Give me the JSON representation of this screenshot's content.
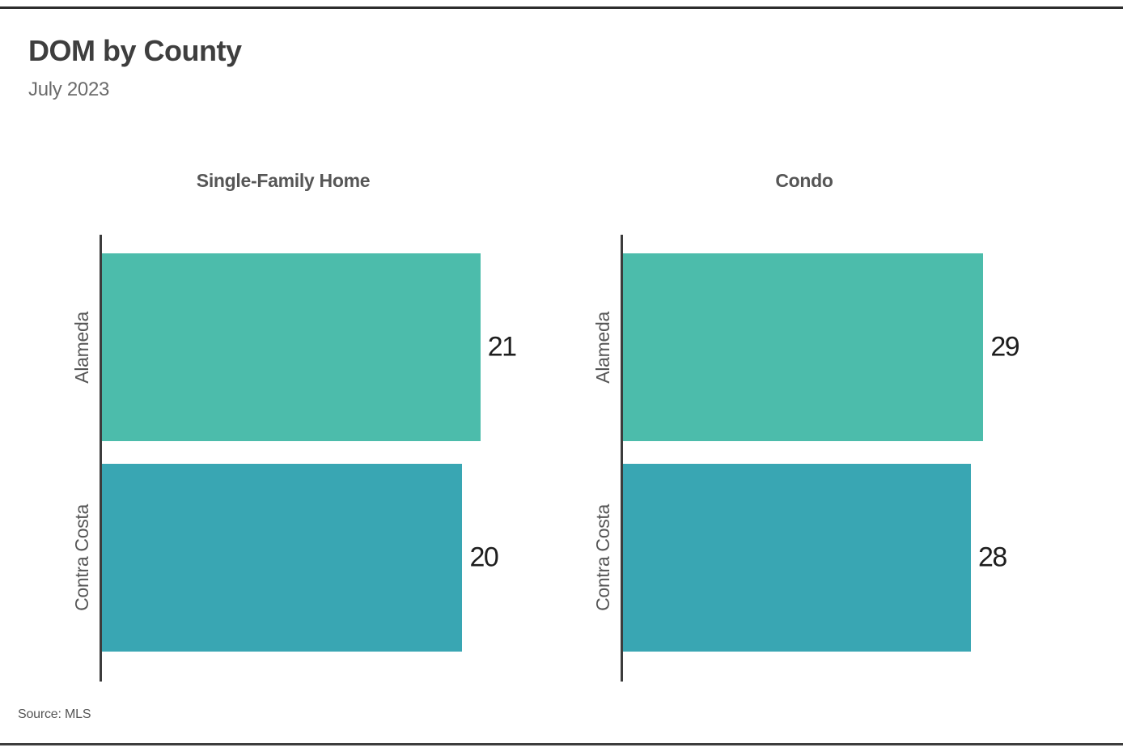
{
  "header": {
    "title": "DOM by County",
    "subtitle": "July 2023"
  },
  "footer": {
    "source_note": "Source: MLS"
  },
  "chart_data": [
    {
      "type": "bar",
      "orientation": "horizontal",
      "title": "Single-Family Home",
      "categories": [
        "Alameda",
        "Contra Costa"
      ],
      "values": [
        21,
        20
      ],
      "value_labels": [
        "21",
        "20"
      ],
      "xlim": [
        0,
        24.2
      ],
      "bar_colors": [
        "#4cbcab",
        "#39a6b3"
      ],
      "axis_color": "#3c3c3c",
      "grid": false,
      "legend": false
    },
    {
      "type": "bar",
      "orientation": "horizontal",
      "title": "Condo",
      "categories": [
        "Alameda",
        "Contra Costa"
      ],
      "values": [
        29,
        28
      ],
      "value_labels": [
        "29",
        "28"
      ],
      "xlim": [
        0,
        35.1
      ],
      "bar_colors": [
        "#4cbcab",
        "#39a6b3"
      ],
      "axis_color": "#3c3c3c",
      "grid": false,
      "legend": false
    }
  ],
  "colors": {
    "background": "#ffffff",
    "rule_top": "#2d2d2d",
    "rule_bottom": "#3d3d3d",
    "title_text": "#3e3e3e",
    "subtitle_text": "#6b6b6b",
    "panel_title_text": "#565656",
    "axis_label_text": "#565656",
    "value_text": "#1e1e1e",
    "source_text": "#555555"
  }
}
